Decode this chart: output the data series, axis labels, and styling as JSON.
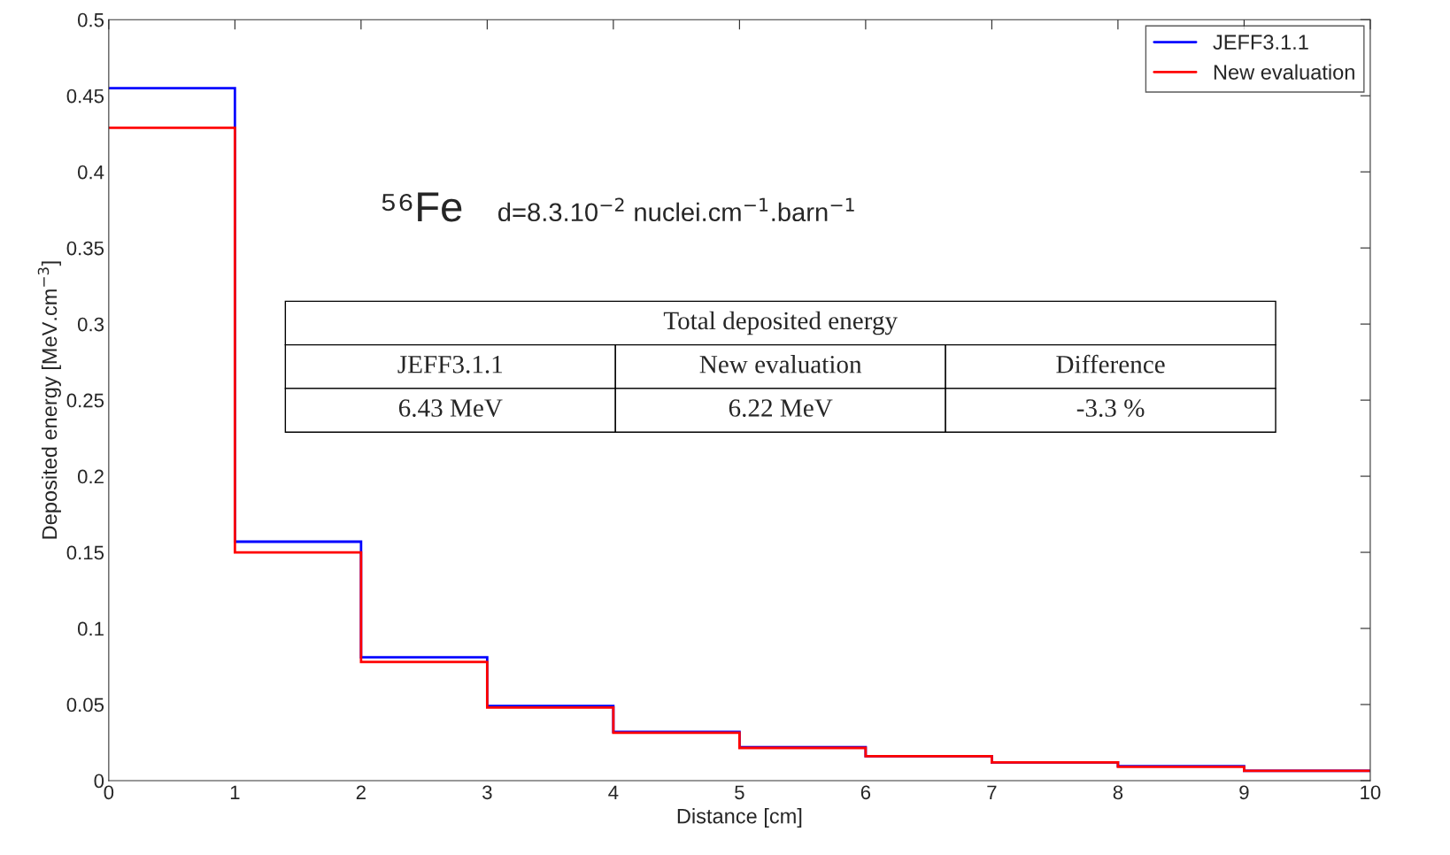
{
  "chart_data": {
    "type": "histogram",
    "xlabel": "Distance [cm]",
    "ylabel": "Deposited energy [MeV.cm$^{−3}$]",
    "bins": [
      0,
      1,
      2,
      3,
      4,
      5,
      6,
      7,
      8,
      9,
      10
    ],
    "series": [
      {
        "name": "JEFF3.1.1",
        "color": "#0000ff",
        "values": [
          0.455,
          0.157,
          0.081,
          0.049,
          0.032,
          0.022,
          0.016,
          0.012,
          0.0095,
          0.0065
        ]
      },
      {
        "name": "New evaluation",
        "color": "#ff0000",
        "values": [
          0.429,
          0.15,
          0.078,
          0.048,
          0.0315,
          0.0215,
          0.016,
          0.012,
          0.009,
          0.0065
        ]
      }
    ],
    "xlim": [
      0,
      10
    ],
    "ylim": [
      0,
      0.5
    ],
    "xticks": [
      0,
      1,
      2,
      3,
      4,
      5,
      6,
      7,
      8,
      9,
      10
    ],
    "yticks": [
      0,
      0.05,
      0.1,
      0.15,
      0.2,
      0.25,
      0.3,
      0.35,
      0.4,
      0.45,
      0.5
    ],
    "annotations": [
      "⁵⁶Fe",
      "d=8.3.10$^{−2}$ nuclei.cm$^{−1}$.barn$^{−1}$",
      "Total deposited energy",
      "JEFF3.1.1",
      "New evaluation",
      "Difference",
      "6.43 MeV",
      "6.22 MeV",
      "-3.3 %"
    ],
    "legend": "top right",
    "grid": false
  }
}
